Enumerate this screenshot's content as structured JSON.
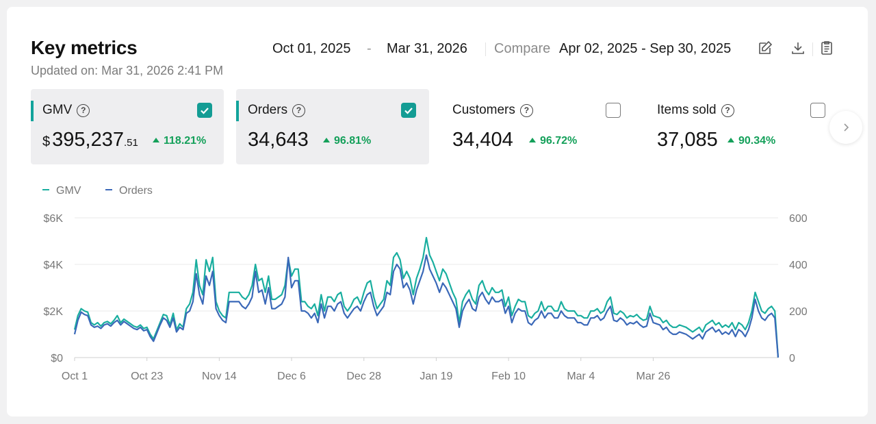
{
  "header": {
    "title": "Key metrics",
    "updated": "Updated on: Mar 31, 2026 2:41 PM",
    "date_start": "Oct 01, 2025",
    "date_sep": "-",
    "date_end": "Mar 31, 2026",
    "compare_label": "Compare",
    "compare_range": "Apr 02, 2025 - Sep 30, 2025",
    "tools": [
      "edit-icon",
      "download-icon",
      "clipboard-icon"
    ]
  },
  "cards": [
    {
      "name": "GMV",
      "currency": "$",
      "value": "395,237",
      "decimals": ".51",
      "change": "118.21%",
      "checked": true
    },
    {
      "name": "Orders",
      "value": "34,643",
      "change": "96.81%",
      "checked": true
    },
    {
      "name": "Customers",
      "value": "34,404",
      "change": "96.72%",
      "checked": false
    },
    {
      "name": "Items sold",
      "value": "37,085",
      "change": "90.34%",
      "checked": false
    }
  ],
  "colors": {
    "gmv": "#19ae9f",
    "orders": "#3a68b8",
    "positive": "#14a05a",
    "accent": "#12a39b"
  },
  "chart_data": {
    "type": "line",
    "legend": [
      "GMV",
      "Orders"
    ],
    "legend_position": "top-left",
    "x_tick_labels": [
      "Oct 1",
      "Oct 23",
      "Nov 14",
      "Dec 6",
      "Dec 28",
      "Jan 19",
      "Feb 10",
      "Mar 4",
      "Mar 26"
    ],
    "x_start": "2025-10-01",
    "y_left": {
      "ticks": [
        "$0",
        "$2K",
        "$4K",
        "$6K"
      ],
      "range": [
        0,
        6000
      ]
    },
    "y_right": {
      "ticks": [
        "0",
        "200",
        "400",
        "600"
      ],
      "range": [
        0,
        600
      ]
    },
    "grid": true,
    "series": [
      {
        "name": "GMV",
        "axis": "left",
        "color": "#19ae9f",
        "values": [
          1200,
          1800,
          2100,
          2000,
          1950,
          1500,
          1400,
          1500,
          1350,
          1500,
          1550,
          1450,
          1600,
          1800,
          1500,
          1650,
          1550,
          1450,
          1350,
          1300,
          1400,
          1250,
          1300,
          1000,
          800,
          1150,
          1500,
          1850,
          1800,
          1400,
          1900,
          1200,
          1450,
          1300,
          2100,
          2300,
          2800,
          4200,
          3100,
          2700,
          4200,
          3700,
          4300,
          2400,
          2000,
          1800,
          1700,
          2800,
          2800,
          2800,
          2800,
          2600,
          2500,
          2700,
          3100,
          4000,
          3300,
          3400,
          2800,
          3500,
          2500,
          2500,
          2600,
          2700,
          3100,
          4250,
          3500,
          3800,
          3800,
          2400,
          2400,
          2200,
          2100,
          2300,
          1800,
          2700,
          2000,
          2600,
          2600,
          2400,
          2700,
          2800,
          2200,
          2000,
          2200,
          2500,
          2600,
          2300,
          2800,
          3200,
          3300,
          2600,
          2100,
          2300,
          2500,
          3300,
          3100,
          4300,
          4500,
          4200,
          3400,
          3700,
          3400,
          2700,
          3400,
          3800,
          4300,
          5150,
          4400,
          4100,
          3700,
          3300,
          3800,
          3600,
          3200,
          2800,
          2500,
          1500,
          2400,
          2700,
          2900,
          2500,
          2300,
          3100,
          3300,
          2900,
          2700,
          3000,
          2800,
          2800,
          2900,
          2200,
          2600,
          1800,
          2200,
          2500,
          2400,
          2400,
          1800,
          1700,
          1900,
          2000,
          2400,
          2000,
          2200,
          2200,
          2000,
          2000,
          2400,
          2100,
          2000,
          2000,
          2000,
          1800,
          1800,
          1700,
          1700,
          2000,
          2000,
          2100,
          1900,
          2000,
          2400,
          2600,
          1900,
          1850,
          2000,
          1900,
          1700,
          1800,
          1750,
          1850,
          1700,
          1600,
          1650,
          2200,
          1800,
          1750,
          1700,
          1500,
          1600,
          1400,
          1300,
          1300,
          1400,
          1350,
          1300,
          1200,
          1100,
          1200,
          1300,
          1100,
          1400,
          1500,
          1600,
          1400,
          1500,
          1300,
          1400,
          1300,
          1500,
          1200,
          1500,
          1400,
          1200,
          1500,
          2000,
          2800,
          2400,
          2000,
          1900,
          2100,
          2200,
          2000,
          0
        ]
      },
      {
        "name": "Orders",
        "axis": "right",
        "color": "#3a68b8",
        "values": [
          100,
          160,
          195,
          185,
          180,
          140,
          130,
          135,
          125,
          140,
          145,
          135,
          150,
          160,
          140,
          155,
          145,
          135,
          125,
          120,
          130,
          115,
          120,
          90,
          70,
          105,
          140,
          170,
          160,
          130,
          170,
          110,
          130,
          120,
          190,
          200,
          240,
          360,
          270,
          230,
          350,
          310,
          370,
          210,
          180,
          160,
          150,
          240,
          240,
          240,
          240,
          220,
          210,
          230,
          260,
          370,
          280,
          290,
          230,
          300,
          210,
          210,
          220,
          230,
          260,
          430,
          300,
          330,
          330,
          200,
          200,
          190,
          170,
          190,
          150,
          230,
          170,
          220,
          220,
          200,
          230,
          240,
          190,
          170,
          190,
          210,
          220,
          200,
          240,
          270,
          280,
          220,
          180,
          200,
          220,
          280,
          270,
          370,
          400,
          380,
          300,
          320,
          290,
          230,
          290,
          330,
          370,
          440,
          380,
          350,
          320,
          280,
          320,
          300,
          270,
          240,
          210,
          130,
          200,
          230,
          250,
          210,
          200,
          260,
          280,
          250,
          230,
          260,
          240,
          240,
          250,
          190,
          220,
          150,
          190,
          210,
          200,
          200,
          150,
          140,
          160,
          170,
          200,
          170,
          190,
          190,
          170,
          170,
          200,
          180,
          170,
          170,
          170,
          150,
          150,
          140,
          140,
          170,
          170,
          180,
          160,
          170,
          200,
          220,
          160,
          155,
          170,
          160,
          140,
          150,
          145,
          155,
          140,
          130,
          135,
          190,
          150,
          145,
          140,
          120,
          130,
          110,
          100,
          100,
          110,
          105,
          100,
          90,
          80,
          90,
          100,
          80,
          110,
          120,
          130,
          110,
          120,
          100,
          110,
          100,
          120,
          90,
          120,
          110,
          90,
          120,
          170,
          250,
          200,
          170,
          160,
          180,
          190,
          170,
          0
        ]
      }
    ]
  }
}
